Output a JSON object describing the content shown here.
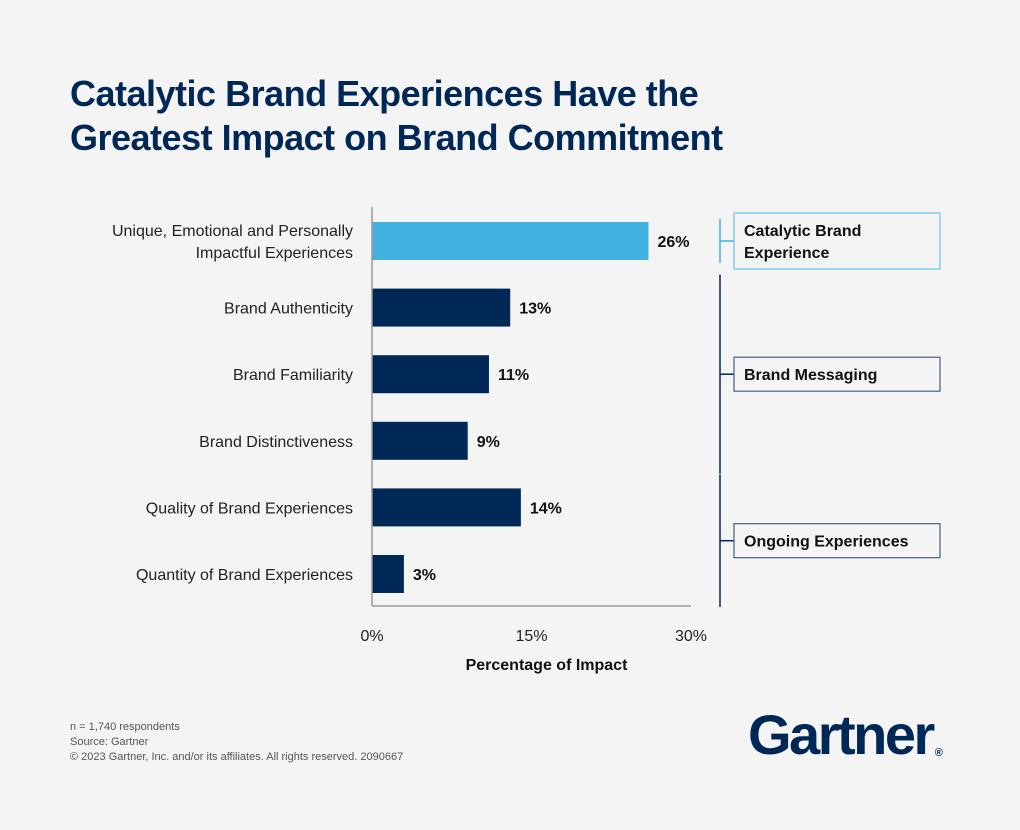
{
  "title": {
    "line1": "Catalytic Brand Experiences Have the",
    "line2": "Greatest Impact on Brand Commitment"
  },
  "chart_data": {
    "type": "bar",
    "orientation": "horizontal",
    "title": "Catalytic Brand Experiences Have the Greatest Impact on Brand Commitment",
    "categories": [
      [
        "Unique, Emotional and Personally",
        "Impactful Experiences"
      ],
      [
        "Brand Authenticity"
      ],
      [
        "Brand Familiarity"
      ],
      [
        "Brand Distinctiveness"
      ],
      [
        "Quality of Brand Experiences"
      ],
      [
        "Quantity of Brand Experiences"
      ]
    ],
    "values": [
      26,
      13,
      11,
      9,
      14,
      3
    ],
    "value_labels": [
      "26%",
      "13%",
      "11%",
      "9%",
      "14%",
      "3%"
    ],
    "bar_colors": [
      "#41b1e0",
      "#002856",
      "#002856",
      "#002856",
      "#002856",
      "#002856"
    ],
    "xlabel": "Percentage of Impact",
    "ylabel": "",
    "xlim": [
      0,
      30
    ],
    "xticks": [
      0,
      15,
      30
    ],
    "xtick_labels": [
      "0%",
      "15%",
      "30%"
    ],
    "grid": false,
    "groups": [
      {
        "label": [
          "Catalytic Brand",
          "Experience"
        ],
        "first": 0,
        "last": 0,
        "color": "#41b1e0"
      },
      {
        "label": [
          "Brand Messaging"
        ],
        "first": 1,
        "last": 3,
        "color": "#002856"
      },
      {
        "label": [
          "Ongoing Experiences"
        ],
        "first": 4,
        "last": 5,
        "color": "#002856"
      }
    ]
  },
  "footer": {
    "sample": "n = 1,740 respondents",
    "source": "Source: Gartner",
    "copyright": "© 2023 Gartner, Inc. and/or its affiliates. All rights reserved. 2090667"
  },
  "logo": {
    "text": "Gartner",
    "mark": "®"
  }
}
